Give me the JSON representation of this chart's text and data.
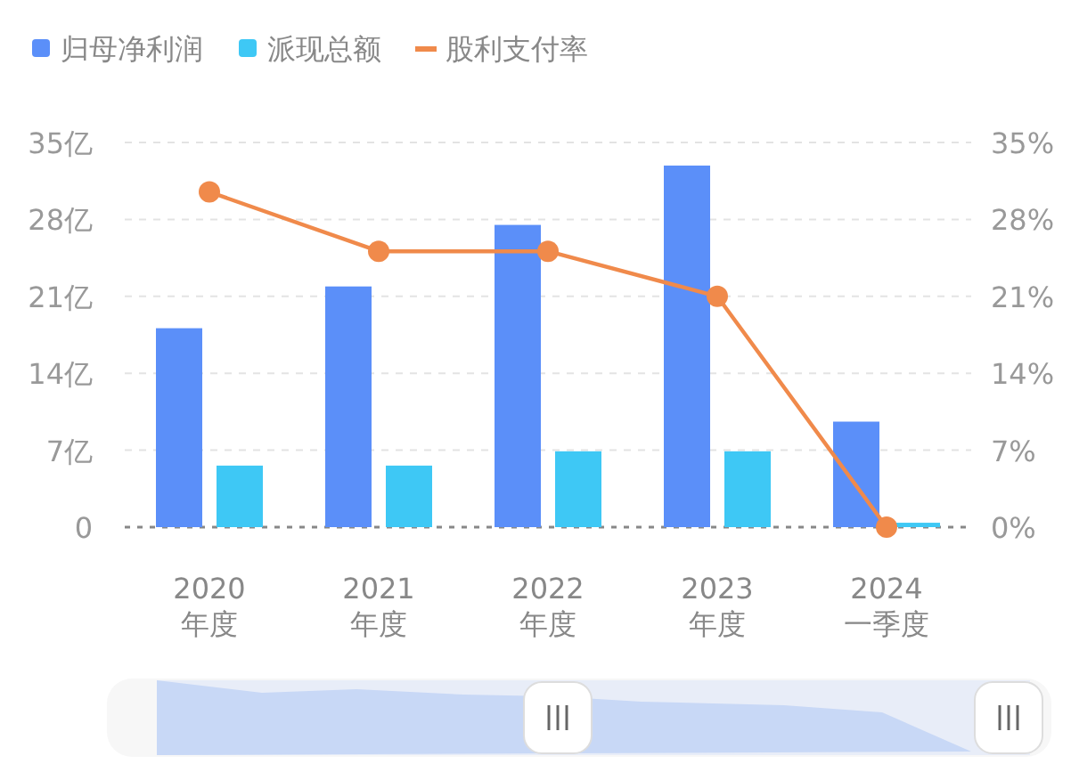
{
  "chart_data": {
    "type": "bar",
    "categories": [
      "2020\n年度",
      "2021\n年度",
      "2022\n年度",
      "2023\n年度",
      "2024\n一季度"
    ],
    "series": [
      {
        "name": "归母净利润",
        "color": "#5b8ff9",
        "values": [
          18.1,
          21.9,
          27.5,
          32.9,
          9.6
        ]
      },
      {
        "name": "派现总额",
        "color": "#3ec8f5",
        "values": [
          5.6,
          5.6,
          6.9,
          6.9,
          0.4
        ]
      },
      {
        "name": "股利支付率",
        "type": "line",
        "axis": "y2",
        "color": "#f08a4b",
        "marker": "circle",
        "values": [
          30.5,
          25.1,
          25.1,
          21.0,
          0
        ]
      }
    ],
    "ylim": [
      0,
      35
    ],
    "yticks": [
      0,
      {
        "value": 7,
        "label": "7亿"
      },
      {
        "value": 14,
        "label": "14亿"
      },
      {
        "value": 21,
        "label": "21亿"
      },
      {
        "value": 28,
        "label": "28亿"
      },
      {
        "value": 35,
        "label": "35亿"
      }
    ],
    "y2lim": [
      0,
      35
    ],
    "y2ticks": [
      {
        "value": 0,
        "label": "0%"
      },
      {
        "value": 7,
        "label": "7%"
      },
      {
        "value": 14,
        "label": "14%"
      },
      {
        "value": 21,
        "label": "21%"
      },
      {
        "value": 28,
        "label": "28%"
      },
      {
        "value": 35,
        "label": "35%"
      }
    ],
    "grid": "y",
    "legend": "top left"
  }
}
